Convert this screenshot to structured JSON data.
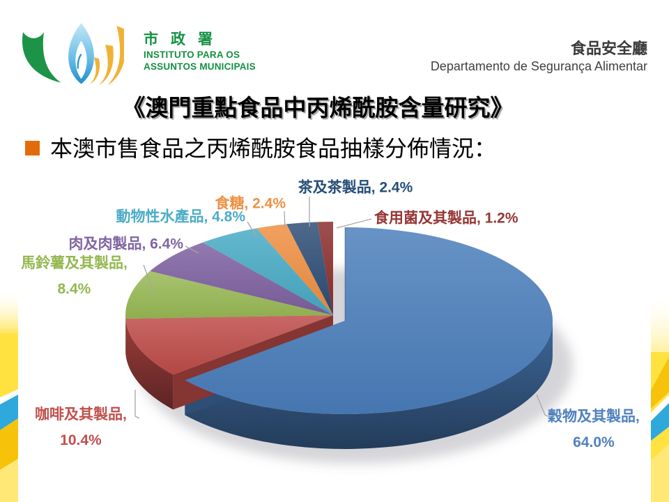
{
  "header": {
    "logo": {
      "title_zh": "市政署",
      "line1": "INSTITUTO PARA OS",
      "line2": "ASSUNTOS MUNICIPAIS"
    },
    "department": {
      "title_zh": "食品安全廳",
      "title_pt": "Departamento de Segurança Alimentar"
    }
  },
  "title": "《澳門重點食品中丙烯酰胺含量研究》",
  "bullet_text": "本澳市售食品之丙烯酰胺食品抽樣分佈情況：",
  "theme": {
    "accent_orange": "#E36C0A",
    "leader_line_gray": "#A6A6A6"
  },
  "chart_data": {
    "type": "pie",
    "style": "3d-exploded",
    "direction": "clockwise",
    "start_angle_deg": 0,
    "exploded_slice": "穀物及其製品",
    "unit": "%",
    "slices": [
      {
        "name": "穀物及其製品",
        "value": 64.0,
        "display": "64.0",
        "color": "#4A7EBB",
        "label_color": "#4F81BD"
      },
      {
        "name": "咖啡及其製品",
        "value": 10.4,
        "display": "10.4",
        "color": "#BE4B48",
        "label_color": "#C0504D"
      },
      {
        "name": "馬鈴薯及其製品",
        "value": 8.4,
        "display": "8.4",
        "color": "#98B954",
        "label_color": "#94B74F"
      },
      {
        "name": "肉及肉製品",
        "value": 6.4,
        "display": "6.4",
        "color": "#7D60A0",
        "label_color": "#8064A2"
      },
      {
        "name": "動物性水產品",
        "value": 4.8,
        "display": "4.8",
        "color": "#46AAC5",
        "label_color": "#4BACC6"
      },
      {
        "name": "食糖",
        "value": 2.4,
        "display": "2.4",
        "color": "#EE8F41",
        "label_color": "#ED9144"
      },
      {
        "name": "茶及茶製品",
        "value": 2.4,
        "display": "2.4",
        "color": "#2C4D75",
        "label_color": "#254D77"
      },
      {
        "name": "食用菌及其製品",
        "value": 1.2,
        "display": "1.2",
        "color": "#8B2E2B",
        "label_color": "#943634"
      }
    ]
  }
}
